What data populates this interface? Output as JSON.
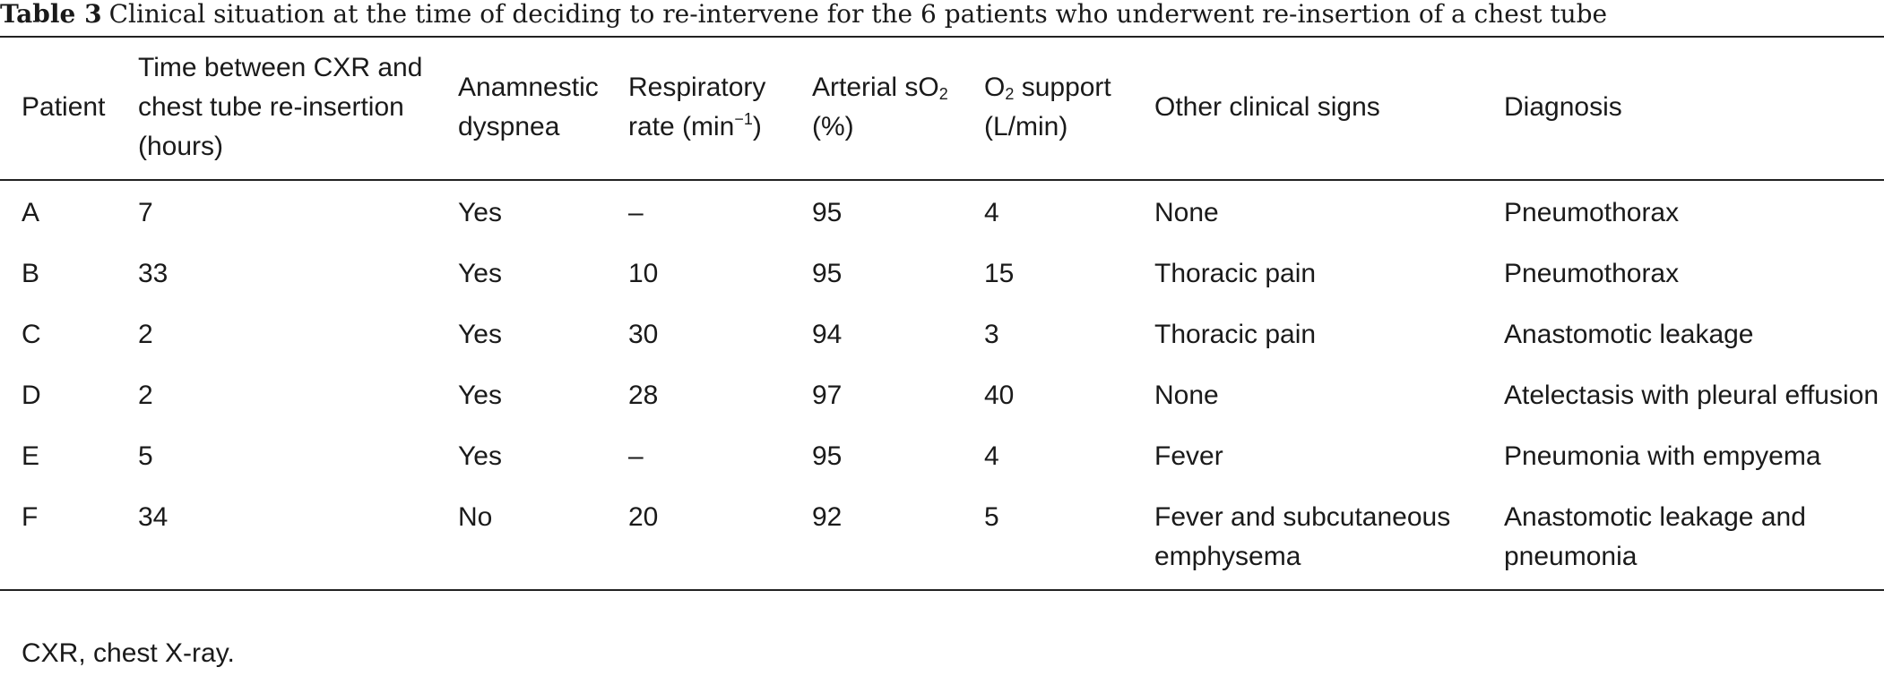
{
  "caption": {
    "label": "Table 3",
    "text": "Clinical situation at the time of deciding to re-intervene for the 6 patients who underwent re-insertion of a chest tube"
  },
  "table": {
    "headers": {
      "patient": "Patient",
      "time": "Time between CXR and chest tube re-insertion (hours)",
      "dyspnea": "Anamnestic dyspnea",
      "resp_rate_main": "Respiratory rate (min",
      "resp_rate_sup": "−1",
      "resp_rate_end": ")",
      "sat_main": "Arterial sO",
      "sat_sub": "2",
      "sat_end": " (%)",
      "o2_main": "O",
      "o2_sub": "2",
      "o2_end": " support (L/min)",
      "other_signs": "Other clinical signs",
      "diagnosis": "Diagnosis"
    },
    "rows": [
      {
        "patient": "A",
        "time": "7",
        "dyspnea": "Yes",
        "resp_rate": "–",
        "sat": "95",
        "o2": "4",
        "other": "None",
        "diagnosis": "Pneumothorax"
      },
      {
        "patient": "B",
        "time": "33",
        "dyspnea": "Yes",
        "resp_rate": "10",
        "sat": "95",
        "o2": "15",
        "other": "Thoracic pain",
        "diagnosis": "Pneumothorax"
      },
      {
        "patient": "C",
        "time": "2",
        "dyspnea": "Yes",
        "resp_rate": "30",
        "sat": "94",
        "o2": "3",
        "other": "Thoracic pain",
        "diagnosis": "Anastomotic leakage"
      },
      {
        "patient": "D",
        "time": "2",
        "dyspnea": "Yes",
        "resp_rate": "28",
        "sat": "97",
        "o2": "40",
        "other": "None",
        "diagnosis": "Atelectasis with pleural effusion"
      },
      {
        "patient": "E",
        "time": "5",
        "dyspnea": "Yes",
        "resp_rate": "–",
        "sat": "95",
        "o2": "4",
        "other": "Fever",
        "diagnosis": "Pneumonia with empyema"
      },
      {
        "patient": "F",
        "time": "34",
        "dyspnea": "No",
        "resp_rate": "20",
        "sat": "92",
        "o2": "5",
        "other": "Fever and subcutaneous emphysema",
        "diagnosis": "Anastomotic leakage and pneumonia"
      }
    ]
  },
  "footnote": "CXR, chest X-ray."
}
